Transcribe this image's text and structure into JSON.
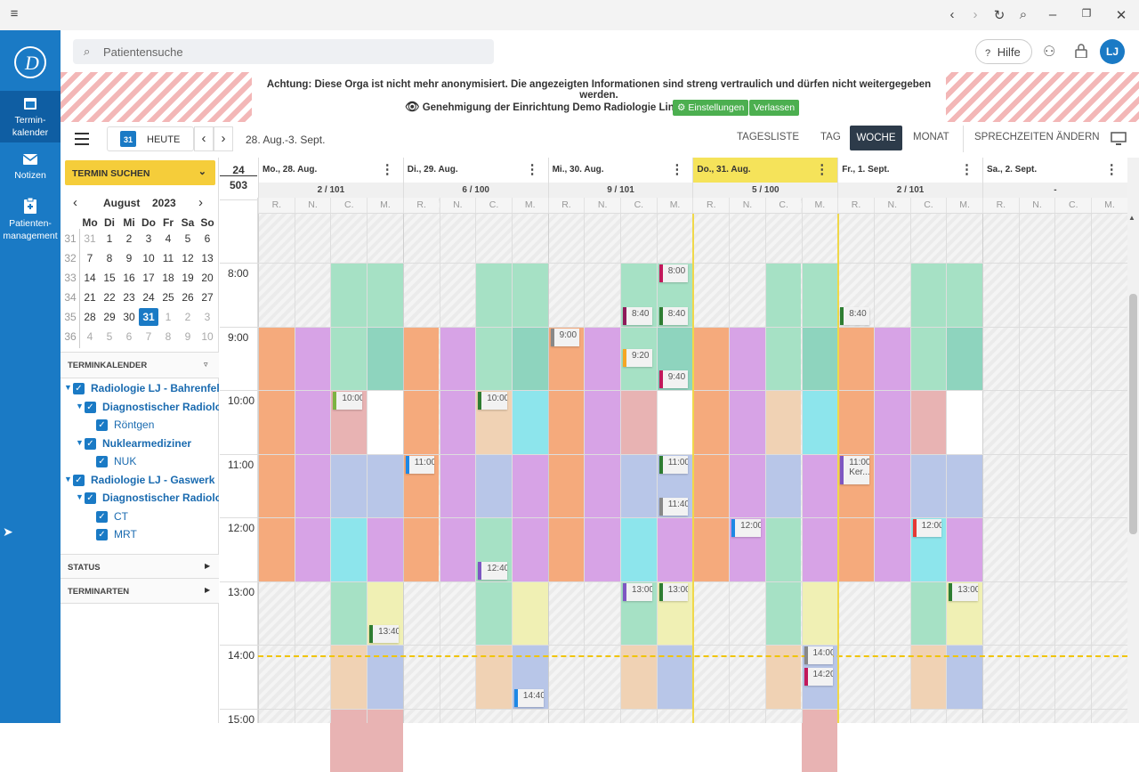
{
  "search": {
    "placeholder": "Patientensuche"
  },
  "topbar": {
    "help": "Hilfe",
    "avatar": "LJ"
  },
  "nav": [
    {
      "label": "Termin-\nkalender"
    },
    {
      "label": "Notizen"
    },
    {
      "label": "Patienten-\nmanagement"
    }
  ],
  "banner": {
    "warning": "Achtung: Diese Orga ist nicht mehr anonymisiert. Die angezeigten Informationen sind streng vertraulich und dürfen nicht weitergegeben werden.",
    "approval": "Genehmigung der Einrichtung Demo Radiologie Linn",
    "settings": "Einstellungen",
    "leave": "Verlassen"
  },
  "toolbar": {
    "today_num": "31",
    "today": "HEUTE",
    "range": "28. Aug.-3. Sept.",
    "views": [
      "TAGESLISTE",
      "TAG",
      "WOCHE",
      "MONAT"
    ],
    "active_view": "WOCHE",
    "office_hours": "SPRECHZEITEN ÄNDERN"
  },
  "sidebar": {
    "find": "TERMIN SUCHEN",
    "month": "August",
    "year": "2023",
    "weekdays": [
      "Mo",
      "Di",
      "Mi",
      "Do",
      "Fr",
      "Sa",
      "So"
    ],
    "weeks": [
      {
        "kw": "31",
        "days": [
          "31",
          "1",
          "2",
          "3",
          "4",
          "5",
          "6"
        ]
      },
      {
        "kw": "32",
        "days": [
          "7",
          "8",
          "9",
          "10",
          "11",
          "12",
          "13"
        ]
      },
      {
        "kw": "33",
        "days": [
          "14",
          "15",
          "16",
          "17",
          "18",
          "19",
          "20"
        ]
      },
      {
        "kw": "34",
        "days": [
          "21",
          "22",
          "23",
          "24",
          "25",
          "26",
          "27"
        ]
      },
      {
        "kw": "35",
        "days": [
          "28",
          "29",
          "30",
          "31",
          "1",
          "2",
          "3"
        ]
      },
      {
        "kw": "36",
        "days": [
          "4",
          "5",
          "6",
          "7",
          "8",
          "9",
          "10"
        ]
      }
    ],
    "section_calendar": "TERMINKALENDER",
    "tree": [
      {
        "label": "Radiologie LJ - Bahrenfeld",
        "level": 0,
        "bold": true,
        "arrow": true
      },
      {
        "label": "Diagnostischer Radiologe",
        "level": 1,
        "bold": true,
        "arrow": true
      },
      {
        "label": "Röntgen",
        "level": 2,
        "bold": false,
        "arrow": false
      },
      {
        "label": "Nuklearmediziner",
        "level": 1,
        "bold": true,
        "arrow": true
      },
      {
        "label": "NUK",
        "level": 2,
        "bold": false,
        "arrow": false
      },
      {
        "label": "Radiologie LJ - Gaswerk",
        "level": 0,
        "bold": true,
        "arrow": true
      },
      {
        "label": "Diagnostischer Radiologe",
        "level": 1,
        "bold": true,
        "arrow": true
      },
      {
        "label": "CT",
        "level": 2,
        "bold": false,
        "arrow": false
      },
      {
        "label": "MRT",
        "level": 2,
        "bold": false,
        "arrow": false
      }
    ],
    "section_status": "STATUS",
    "section_types": "TERMINARTEN"
  },
  "week": {
    "kw": "24",
    "count": "503",
    "days": [
      {
        "label": "Mo., 28. Aug.",
        "count": "2 / 101",
        "today": false
      },
      {
        "label": "Di., 29. Aug.",
        "count": "6 / 100",
        "today": false
      },
      {
        "label": "Mi., 30. Aug.",
        "count": "9 / 101",
        "today": false
      },
      {
        "label": "Do., 31. Aug.",
        "count": "5 / 100",
        "today": true
      },
      {
        "label": "Fr., 1. Sept.",
        "count": "2 / 101",
        "today": false
      },
      {
        "label": "Sa., 2. Sept.",
        "count": "-",
        "today": false
      }
    ],
    "resources": [
      "R.",
      "N.",
      "C.",
      "M."
    ],
    "hours": [
      "8:00",
      "9:00",
      "10:00",
      "11:00",
      "12:00",
      "13:00",
      "14:00",
      "15:00"
    ]
  },
  "colors": {
    "R": "#f5aa7c",
    "N": "#d7a3e6",
    "C": "#a6e1c5",
    "M": "#a6e1c5",
    "teal": "#8ed4be",
    "cyan": "#8de5ec",
    "pink": "#e8b3b3",
    "blue": "#b8c6e8",
    "yellow": "#f0f0b4",
    "peach": "#f0d2b4",
    "gray": "#e6e6e6",
    "accent": "#1a7ac5",
    "today": "#f5e35a"
  },
  "events": [
    {
      "day": 2,
      "res": 3,
      "start": "8:00",
      "bar": "#c2185b",
      "text": "8:00"
    },
    {
      "day": 2,
      "res": 2,
      "start": "8:40",
      "bar": "#8e1a5a",
      "text": "8:40"
    },
    {
      "day": 2,
      "res": 3,
      "start": "8:40",
      "bar": "#2e7d32",
      "text": "8:40"
    },
    {
      "day": 4,
      "res": 0,
      "start": "8:40",
      "bar": "#2e7d32",
      "text": "8:40"
    },
    {
      "day": 2,
      "res": 0,
      "start": "9:00",
      "bar": "#888",
      "text": "9:00"
    },
    {
      "day": 2,
      "res": 2,
      "start": "9:20",
      "bar": "#f5a623",
      "text": "9:20"
    },
    {
      "day": 2,
      "res": 3,
      "start": "9:40",
      "bar": "#c2185b",
      "text": "9:40"
    },
    {
      "day": 0,
      "res": 2,
      "start": "10:00",
      "bar": "#7cb342",
      "text": "10:00"
    },
    {
      "day": 1,
      "res": 2,
      "start": "10:00",
      "bar": "#2e7d32",
      "text": "10:00"
    },
    {
      "day": 1,
      "res": 0,
      "start": "11:00",
      "bar": "#1e88e5",
      "text": "11:00"
    },
    {
      "day": 2,
      "res": 3,
      "start": "11:00",
      "bar": "#2e7d32",
      "text": "11:00"
    },
    {
      "day": 4,
      "res": 0,
      "start": "11:00",
      "bar": "#7e57c2",
      "text": "11:00 Ker..."
    },
    {
      "day": 2,
      "res": 3,
      "start": "11:40",
      "bar": "#888",
      "text": "11:40"
    },
    {
      "day": 3,
      "res": 1,
      "start": "12:00",
      "bar": "#1e88e5",
      "text": "12:00"
    },
    {
      "day": 4,
      "res": 2,
      "start": "12:00",
      "bar": "#e53935",
      "text": "12:00"
    },
    {
      "day": 1,
      "res": 2,
      "start": "12:40",
      "bar": "#7e57c2",
      "text": "12:40"
    },
    {
      "day": 2,
      "res": 2,
      "start": "13:00",
      "bar": "#7e57c2",
      "text": "13:00"
    },
    {
      "day": 2,
      "res": 3,
      "start": "13:00",
      "bar": "#2e7d32",
      "text": "13:00"
    },
    {
      "day": 4,
      "res": 3,
      "start": "13:00",
      "bar": "#2e7d32",
      "text": "13:00"
    },
    {
      "day": 0,
      "res": 3,
      "start": "13:40",
      "bar": "#2e7d32",
      "text": "13:40"
    },
    {
      "day": 3,
      "res": 3,
      "start": "14:00",
      "bar": "#888",
      "text": "14:00"
    },
    {
      "day": 3,
      "res": 3,
      "start": "14:20",
      "bar": "#c2185b",
      "text": "14:20"
    },
    {
      "day": 1,
      "res": 3,
      "start": "14:40",
      "bar": "#1e88e5",
      "text": "14:40"
    }
  ]
}
